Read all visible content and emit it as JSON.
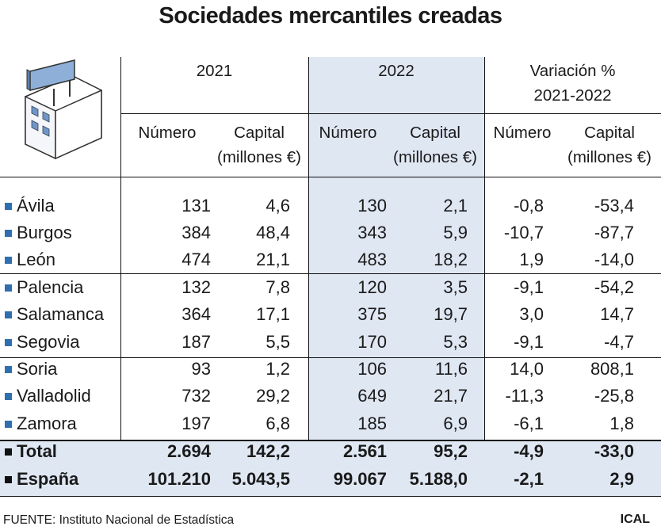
{
  "title": "Sociedades mercantiles creadas",
  "headers": {
    "year_2021": "2021",
    "year_2022": "2022",
    "variation_line1": "Variación %",
    "variation_line2": "2021-2022",
    "numero": "Número",
    "capital_line1": "Capital",
    "capital_line2": "(millones €)"
  },
  "rows": [
    {
      "name": "Ávila",
      "values": [
        "131",
        "4,6",
        "130",
        "2,1",
        "-0,8",
        "-53,4"
      ]
    },
    {
      "name": "Burgos",
      "values": [
        "384",
        "48,4",
        "343",
        "5,9",
        "-10,7",
        "-87,7"
      ]
    },
    {
      "name": "León",
      "values": [
        "474",
        "21,1",
        "483",
        "18,2",
        "1,9",
        "-14,0"
      ]
    },
    {
      "name": "Palencia",
      "values": [
        "132",
        "7,8",
        "120",
        "3,5",
        "-9,1",
        "-54,2"
      ]
    },
    {
      "name": "Salamanca",
      "values": [
        "364",
        "17,1",
        "375",
        "19,7",
        "3,0",
        "14,7"
      ]
    },
    {
      "name": "Segovia",
      "values": [
        "187",
        "5,5",
        "170",
        "5,3",
        "-9,1",
        "-4,7"
      ]
    },
    {
      "name": "Soria",
      "values": [
        "93",
        "1,2",
        "106",
        "11,6",
        "14,0",
        "808,1"
      ]
    },
    {
      "name": "Valladolid",
      "values": [
        "732",
        "29,2",
        "649",
        "21,7",
        "-11,3",
        "-25,8"
      ]
    },
    {
      "name": "Zamora",
      "values": [
        "197",
        "6,8",
        "185",
        "6,9",
        "-6,1",
        "1,8"
      ]
    }
  ],
  "totals": [
    {
      "name": "Total",
      "values": [
        "2.694",
        "142,2",
        "2.561",
        "95,2",
        "-4,9",
        "-33,0"
      ]
    },
    {
      "name": "España",
      "values": [
        "101.210",
        "5.043,5",
        "99.067",
        "5.188,0",
        "-2,1",
        "2,9"
      ]
    }
  ],
  "source": "FUENTE: Instituto Nacional de Estadística",
  "brand": "ICAL",
  "colors": {
    "highlight": "#dfe7f3",
    "bullet_province": "#2f6fb0",
    "bullet_total": "#111111",
    "icon_blue": "#6f96c6"
  },
  "chart_data": {
    "type": "table",
    "title": "Sociedades mercantiles creadas",
    "columns": [
      "2021 Número",
      "2021 Capital (millones €)",
      "2022 Número",
      "2022 Capital (millones €)",
      "Variación % 2021-2022 Número",
      "Variación % 2021-2022 Capital (millones €)"
    ],
    "rows": [
      {
        "label": "Ávila",
        "values": [
          131,
          4.6,
          130,
          2.1,
          -0.8,
          -53.4
        ]
      },
      {
        "label": "Burgos",
        "values": [
          384,
          48.4,
          343,
          5.9,
          -10.7,
          -87.7
        ]
      },
      {
        "label": "León",
        "values": [
          474,
          21.1,
          483,
          18.2,
          1.9,
          -14.0
        ]
      },
      {
        "label": "Palencia",
        "values": [
          132,
          7.8,
          120,
          3.5,
          -9.1,
          -54.2
        ]
      },
      {
        "label": "Salamanca",
        "values": [
          364,
          17.1,
          375,
          19.7,
          3.0,
          14.7
        ]
      },
      {
        "label": "Segovia",
        "values": [
          187,
          5.5,
          170,
          5.3,
          -9.1,
          -4.7
        ]
      },
      {
        "label": "Soria",
        "values": [
          93,
          1.2,
          106,
          11.6,
          14.0,
          808.1
        ]
      },
      {
        "label": "Valladolid",
        "values": [
          732,
          29.2,
          649,
          21.7,
          -11.3,
          -25.8
        ]
      },
      {
        "label": "Zamora",
        "values": [
          197,
          6.8,
          185,
          6.9,
          -6.1,
          1.8
        ]
      },
      {
        "label": "Total",
        "values": [
          2694,
          142.2,
          2561,
          95.2,
          -4.9,
          -33.0
        ]
      },
      {
        "label": "España",
        "values": [
          101210,
          5043.5,
          99067,
          5188.0,
          -2.1,
          2.9
        ]
      }
    ]
  }
}
